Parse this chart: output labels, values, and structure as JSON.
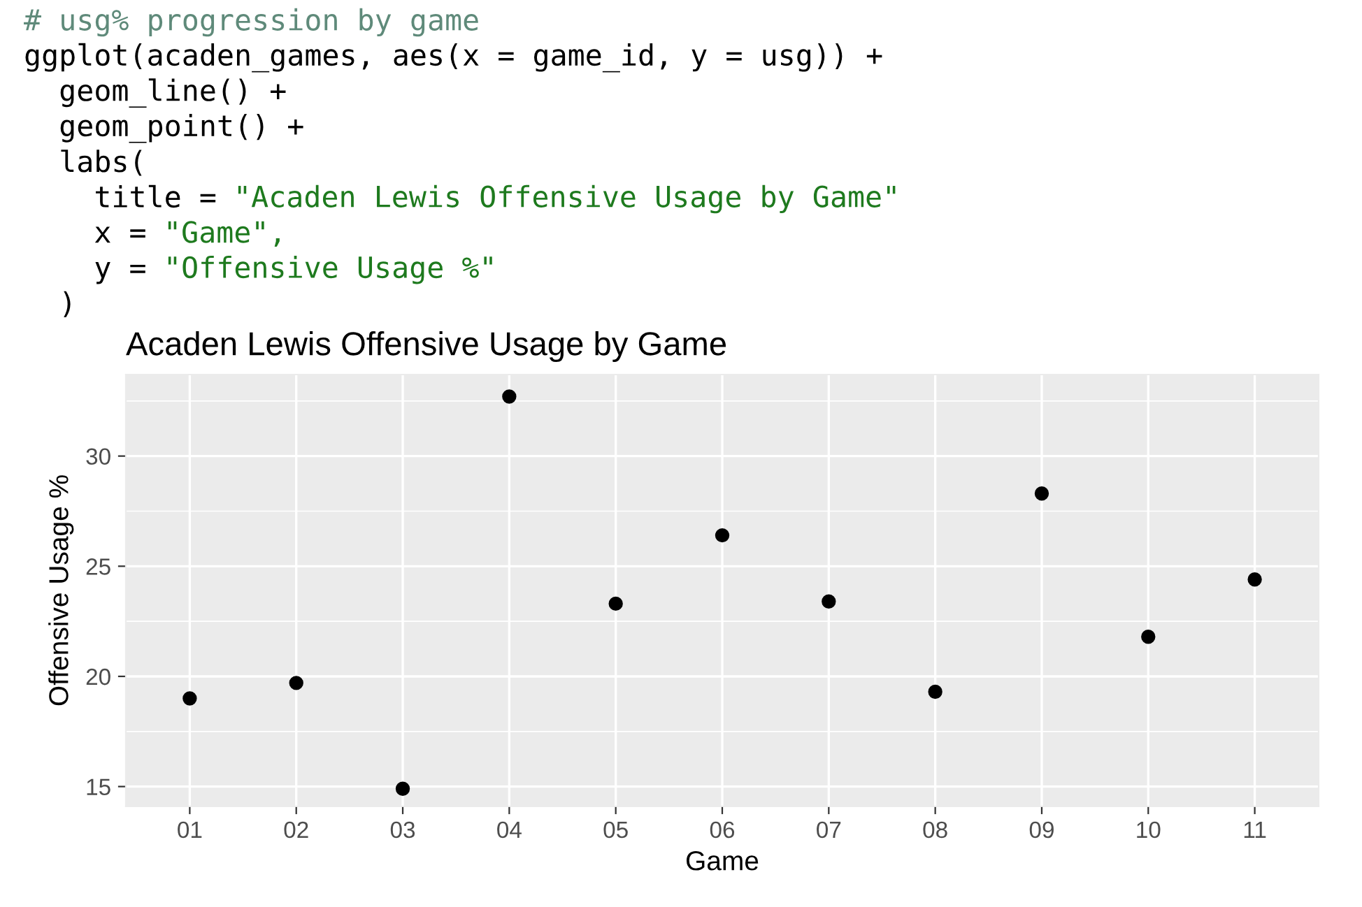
{
  "chart_data": {
    "type": "scatter",
    "title": "Acaden Lewis Offensive Usage by Game",
    "xlabel": "Game",
    "ylabel": "Offensive Usage %",
    "categories": [
      "01",
      "02",
      "03",
      "04",
      "05",
      "06",
      "07",
      "08",
      "09",
      "10",
      "11"
    ],
    "series": [
      {
        "color": "#000000",
        "values": [
          19.0,
          19.7,
          14.9,
          32.7,
          23.3,
          26.4,
          23.4,
          19.3,
          28.3,
          21.8,
          24.4
        ]
      }
    ],
    "ylim": [
      14.1,
      33.7
    ],
    "yticks": [
      15,
      20,
      25,
      30
    ],
    "grid": true,
    "marker": "circle",
    "annotations": [
      "# usg% progression by game",
      "ggplot(acaden_games, aes(x = game_id, y = usg)) +",
      "  geom_line() +",
      "  geom_point() +",
      "  labs(",
      "    title = \"Acaden Lewis Offensive Usage by Game\"",
      "    x = \"Game\",",
      "    y = \"Offensive Usage %\"",
      "  )"
    ]
  }
}
